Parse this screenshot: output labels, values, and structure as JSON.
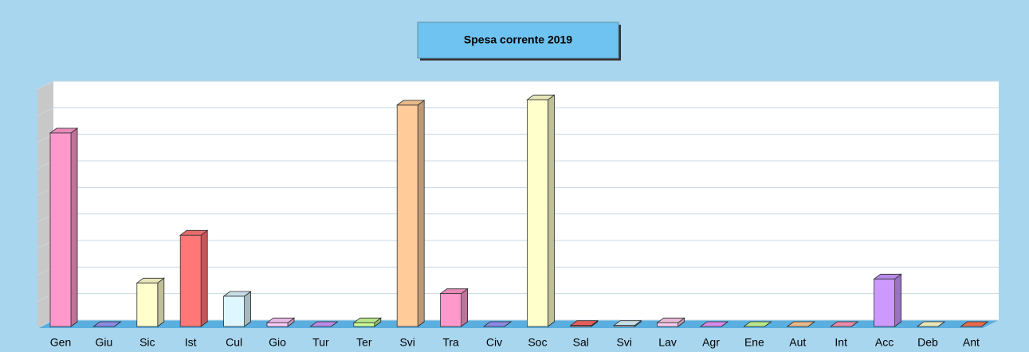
{
  "chart_data": {
    "type": "bar3d",
    "title": "Spesa corrente 2019",
    "categories": [
      "Gen",
      "Giu",
      "Sic",
      "Ist",
      "Cul",
      "Gio",
      "Tur",
      "Ter",
      "Svi",
      "Tra",
      "Civ",
      "Soc",
      "Sal",
      "Svi",
      "Lav",
      "Agr",
      "Ene",
      "Aut",
      "Int",
      "Acc",
      "Deb",
      "Ant"
    ],
    "values": [
      7.35,
      0.05,
      1.7,
      3.5,
      1.2,
      0.2,
      0.05,
      0.2,
      8.4,
      1.3,
      0.05,
      8.6,
      0.1,
      0.1,
      0.2,
      0.05,
      0.05,
      0.05,
      0.05,
      1.85,
      0.05,
      0.05
    ],
    "colors": [
      "#ff99cc",
      "#9999ff",
      "#ffffcc",
      "#ff7777",
      "#ddf6ff",
      "#ffccff",
      "#cc99ff",
      "#ccff99",
      "#ffcc99",
      "#ff99cc",
      "#9999ff",
      "#ffffcc",
      "#ff6666",
      "#ddf6ff",
      "#ffccee",
      "#ee99ff",
      "#ccff99",
      "#ffcc99",
      "#ff99bb",
      "#cc99ff",
      "#ffffcc",
      "#ff7755"
    ],
    "ylim": [
      0,
      9
    ],
    "yticks": [
      0,
      1,
      2,
      3,
      4,
      5,
      6,
      7,
      8,
      9
    ],
    "grid": true
  }
}
